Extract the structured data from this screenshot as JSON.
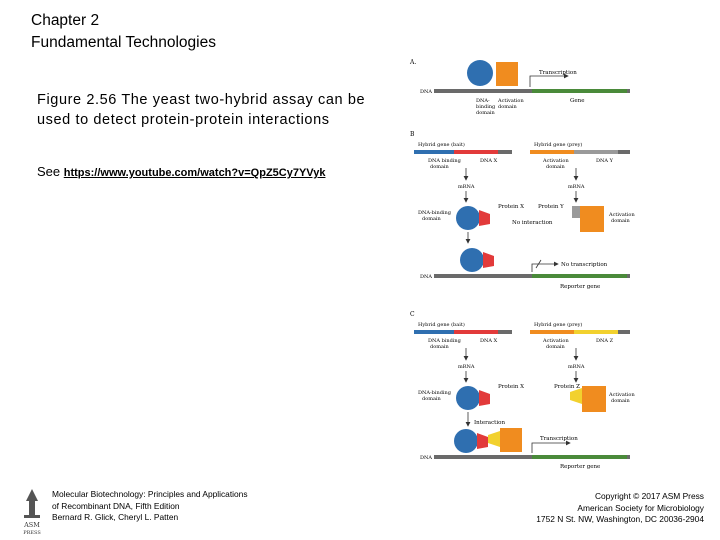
{
  "title": {
    "line1": "Chapter 2",
    "line2": "Fundamental Technologies"
  },
  "caption": {
    "text": "Figure 2.56 The yeast two-hybrid assay can be used to detect protein-protein interactions"
  },
  "see": {
    "prefix": "See ",
    "link": "https://www.youtube.com/watch?v=QpZ5Cy7YVyk"
  },
  "figure": {
    "panel_a": {
      "letter": "A.",
      "transcription": "Transcription",
      "dna": "DNA",
      "dna_binding_domain": "DNA-\nbinding\ndomain",
      "activation_domain": "Activation\ndomain",
      "gene": "Gene"
    },
    "panel_b": {
      "letter": "B",
      "hybrid_bait": "Hybrid gene (bait)",
      "hybrid_prey": "Hybrid gene (prey)",
      "dna_binding_domain": "DNA binding\ndomain",
      "dna_x": "DNA X",
      "activation_domain": "Activation\ndomain",
      "dna_y": "DNA Y",
      "mrna": "mRNA",
      "protein_x": "Protein X",
      "protein_y": "Protein Y",
      "dna_binding_domain2": "DNA-binding\ndomain",
      "activation_domain2": "Activation\ndomain",
      "no_interaction": "No interaction",
      "no_transcription": "No transcription",
      "dna": "DNA",
      "reporter_gene": "Reporter gene"
    },
    "panel_c": {
      "letter": "C",
      "hybrid_bait": "Hybrid gene (bait)",
      "hybrid_prey": "Hybrid gene (prey)",
      "dna_binding_domain": "DNA binding\ndomain",
      "dna_x": "DNA X",
      "activation_domain": "Activation\ndomain",
      "dna_z": "DNA Z",
      "mrna": "mRNA",
      "protein_x": "Protein X",
      "protein_z": "Protein Z",
      "dna_binding_domain2": "DNA-binding\ndomain",
      "activation_domain2": "Activation\ndomain",
      "interaction": "Interaction",
      "transcription": "Transcription",
      "dna": "DNA",
      "reporter_gene": "Reporter gene"
    }
  },
  "footer": {
    "left_line1": "Molecular Biotechnology: Principles and Applications",
    "left_line2": "of Recombinant DNA, Fifth Edition",
    "left_line3": "Bernard R. Glick, Cheryl L. Patten",
    "right_line1": "Copyright © 2017 ASM Press",
    "right_line2": "American Society for Microbiology",
    "right_line3": "1752 N St. NW, Washington, DC 20036-2904",
    "logo_text": "ASM\nPRESS"
  },
  "colors": {
    "dna_binding": "#2f6fb0",
    "activation": "#f08c1f",
    "protein_x": "#e23a3a",
    "protein_y": "#9a9a9a",
    "protein_z": "#f2d12e",
    "gene": "#4a8a3a",
    "link": "#000000"
  }
}
